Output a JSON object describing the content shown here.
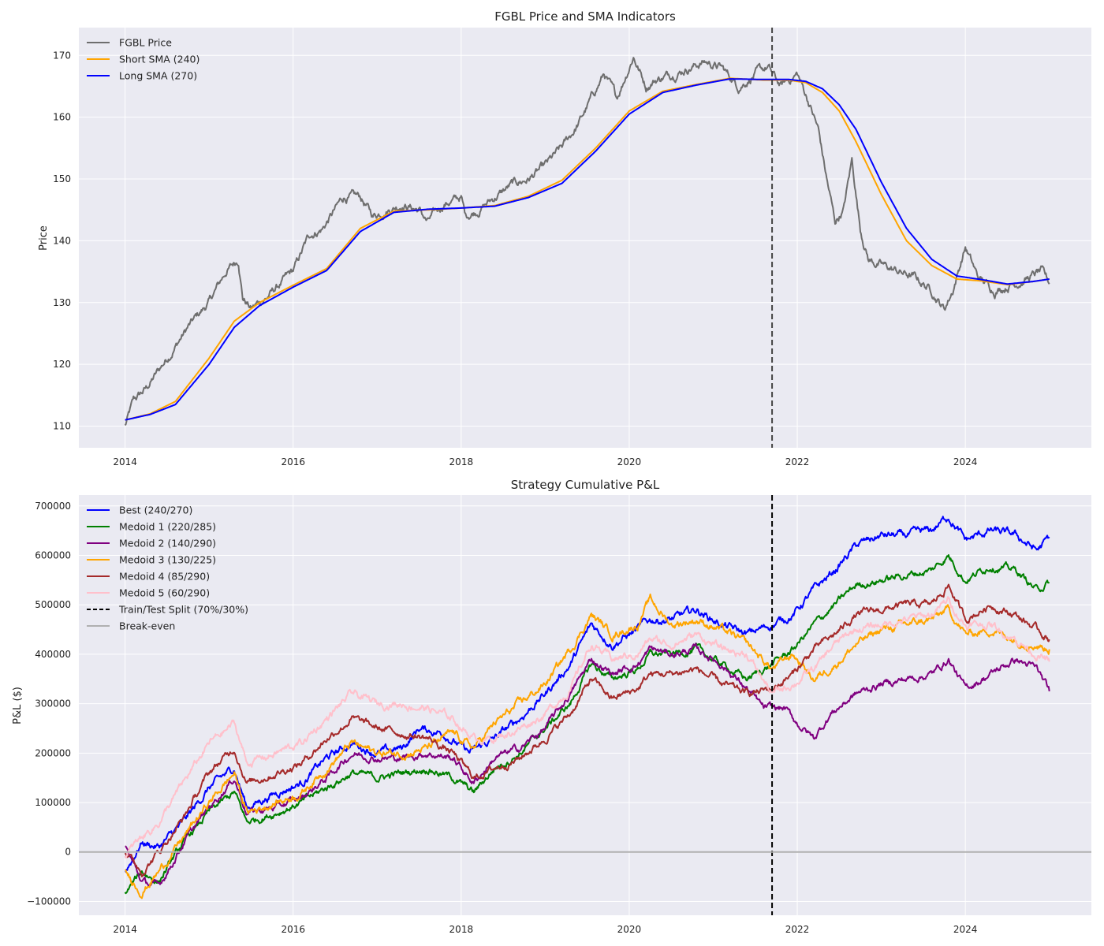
{
  "chart_data": [
    {
      "type": "line",
      "title": "FGBL Price and SMA Indicators",
      "xlabel": "",
      "ylabel": "Price",
      "xlim": [
        2013.45,
        2025.5
      ],
      "ylim": [
        106.5,
        174.5
      ],
      "xticks": [
        2014,
        2016,
        2018,
        2020,
        2022,
        2024
      ],
      "xtick_labels": [
        "2014",
        "2016",
        "2018",
        "2020",
        "2022",
        "2024"
      ],
      "yticks": [
        110,
        120,
        130,
        140,
        150,
        160,
        170
      ],
      "ytick_labels": [
        "110",
        "120",
        "130",
        "140",
        "150",
        "160",
        "170"
      ],
      "grid": true,
      "legend_position": "top-left",
      "split_line": {
        "x": 2021.7,
        "color": "#444444",
        "style": "dashed"
      },
      "series": [
        {
          "name": "FGBL Price",
          "color": "#6e6e6e",
          "noise": 0.9,
          "x": [
            2014.0,
            2014.1,
            2014.25,
            2014.5,
            2014.75,
            2015.0,
            2015.2,
            2015.35,
            2015.4,
            2015.5,
            2015.7,
            2016.0,
            2016.2,
            2016.35,
            2016.5,
            2016.6,
            2016.8,
            2016.95,
            2017.1,
            2017.3,
            2017.5,
            2017.6,
            2017.8,
            2018.0,
            2018.05,
            2018.2,
            2018.4,
            2018.6,
            2018.8,
            2019.0,
            2019.2,
            2019.4,
            2019.55,
            2019.7,
            2019.85,
            2020.05,
            2020.2,
            2020.3,
            2020.5,
            2020.7,
            2020.9,
            2021.1,
            2021.3,
            2021.5,
            2021.65,
            2021.8,
            2022.0,
            2022.15,
            2022.25,
            2022.35,
            2022.45,
            2022.55,
            2022.65,
            2022.75,
            2022.85,
            2023.0,
            2023.2,
            2023.4,
            2023.6,
            2023.75,
            2023.85,
            2024.0,
            2024.15,
            2024.35,
            2024.55,
            2024.75,
            2024.9,
            2025.0
          ],
          "y": [
            110,
            114,
            116,
            121,
            126,
            130,
            135,
            137,
            131,
            129,
            131,
            135,
            141,
            142,
            145,
            147,
            147,
            144,
            145,
            146,
            145,
            143,
            146,
            147,
            144,
            145,
            147,
            149,
            150,
            152,
            155,
            159,
            163,
            167,
            163,
            170,
            165,
            166,
            167,
            168,
            169,
            168,
            165,
            167,
            168,
            165,
            167,
            162,
            158,
            150,
            143,
            145,
            153,
            142,
            137,
            136,
            135,
            134,
            132,
            129,
            132,
            139,
            134,
            132,
            133,
            134,
            135,
            133
          ]
        },
        {
          "name": "Short SMA (240)",
          "color": "#ffa500",
          "noise": 0,
          "x": [
            2014.0,
            2014.3,
            2014.6,
            2015.0,
            2015.3,
            2015.6,
            2016.0,
            2016.4,
            2016.8,
            2017.2,
            2017.6,
            2018.0,
            2018.4,
            2018.8,
            2019.2,
            2019.6,
            2020.0,
            2020.4,
            2020.8,
            2021.2,
            2021.6,
            2021.9,
            2022.1,
            2022.3,
            2022.5,
            2022.7,
            2023.0,
            2023.3,
            2023.6,
            2023.9,
            2024.2,
            2024.5,
            2024.8,
            2025.0
          ],
          "y": [
            111,
            112,
            114,
            121,
            127,
            130,
            132.8,
            135.5,
            142,
            144.8,
            145,
            145.3,
            145.7,
            147.2,
            149.8,
            155,
            161,
            164.2,
            165.3,
            166.3,
            166,
            166,
            165.6,
            164,
            161,
            156,
            147.5,
            140,
            136,
            133.8,
            133.5,
            132.9,
            133.4,
            133.8
          ]
        },
        {
          "name": "Long SMA (270)",
          "color": "#0000ff",
          "noise": 0,
          "x": [
            2014.0,
            2014.3,
            2014.6,
            2015.0,
            2015.3,
            2015.6,
            2016.0,
            2016.4,
            2016.8,
            2017.2,
            2017.6,
            2018.0,
            2018.4,
            2018.8,
            2019.2,
            2019.6,
            2020.0,
            2020.4,
            2020.8,
            2021.2,
            2021.6,
            2021.9,
            2022.1,
            2022.3,
            2022.5,
            2022.7,
            2023.0,
            2023.3,
            2023.6,
            2023.9,
            2024.2,
            2024.5,
            2024.8,
            2025.0
          ],
          "y": [
            111,
            111.9,
            113.5,
            120,
            126,
            129.5,
            132.5,
            135.2,
            141.5,
            144.6,
            145.1,
            145.3,
            145.6,
            147,
            149.3,
            154.5,
            160.5,
            164,
            165.2,
            166.2,
            166.1,
            166.1,
            165.8,
            164.6,
            162,
            158,
            149.5,
            142,
            137,
            134.3,
            133.7,
            133,
            133.4,
            133.8
          ]
        }
      ]
    },
    {
      "type": "line",
      "title": "Strategy Cumulative P&L",
      "xlabel": "",
      "ylabel": "P&L ($)",
      "xlim": [
        2013.45,
        2025.5
      ],
      "ylim": [
        -128000,
        722000
      ],
      "xticks": [
        2014,
        2016,
        2018,
        2020,
        2022,
        2024
      ],
      "xtick_labels": [
        "2014",
        "2016",
        "2018",
        "2020",
        "2022",
        "2024"
      ],
      "yticks": [
        -100000,
        0,
        100000,
        200000,
        300000,
        400000,
        500000,
        600000,
        700000
      ],
      "ytick_labels": [
        "−100000",
        "0",
        "100000",
        "200000",
        "300000",
        "400000",
        "500000",
        "600000",
        "700000"
      ],
      "grid": true,
      "legend_position": "top-left",
      "series": [
        {
          "name": "Best (240/270)",
          "color": "#0000ff",
          "noise": 10000,
          "x": [
            2014.0,
            2014.2,
            2014.4,
            2014.7,
            2015.0,
            2015.3,
            2015.45,
            2015.8,
            2016.1,
            2016.4,
            2016.7,
            2017.0,
            2017.3,
            2017.5,
            2017.8,
            2018.1,
            2018.4,
            2018.7,
            2019.0,
            2019.3,
            2019.55,
            2019.8,
            2020.1,
            2020.25,
            2020.5,
            2020.8,
            2021.1,
            2021.4,
            2021.7,
            2021.95,
            2022.2,
            2022.45,
            2022.7,
            2023.0,
            2023.3,
            2023.6,
            2023.8,
            2024.0,
            2024.3,
            2024.6,
            2024.85,
            2025.0
          ],
          "y": [
            -40000,
            20000,
            10000,
            60000,
            130000,
            170000,
            90000,
            120000,
            140000,
            190000,
            220000,
            200000,
            210000,
            250000,
            240000,
            200000,
            230000,
            270000,
            320000,
            380000,
            460000,
            420000,
            450000,
            470000,
            470000,
            490000,
            460000,
            440000,
            460000,
            480000,
            530000,
            570000,
            620000,
            640000,
            640000,
            650000,
            680000,
            630000,
            650000,
            640000,
            610000,
            635000
          ]
        },
        {
          "name": "Medoid 1 (220/285)",
          "color": "#008000",
          "noise": 9000,
          "x": [
            2014.0,
            2014.2,
            2014.4,
            2014.7,
            2015.0,
            2015.3,
            2015.45,
            2015.8,
            2016.1,
            2016.4,
            2016.7,
            2017.0,
            2017.3,
            2017.6,
            2017.9,
            2018.15,
            2018.4,
            2018.7,
            2019.0,
            2019.3,
            2019.55,
            2019.8,
            2020.1,
            2020.25,
            2020.5,
            2020.8,
            2021.1,
            2021.4,
            2021.7,
            2021.95,
            2022.2,
            2022.45,
            2022.7,
            2023.0,
            2023.3,
            2023.6,
            2023.8,
            2024.0,
            2024.3,
            2024.6,
            2024.85,
            2025.0
          ],
          "y": [
            -85000,
            -40000,
            -60000,
            20000,
            80000,
            120000,
            60000,
            80000,
            100000,
            130000,
            160000,
            150000,
            160000,
            170000,
            150000,
            120000,
            170000,
            200000,
            250000,
            300000,
            380000,
            350000,
            370000,
            400000,
            400000,
            410000,
            380000,
            350000,
            380000,
            410000,
            460000,
            500000,
            540000,
            550000,
            560000,
            570000,
            600000,
            550000,
            580000,
            570000,
            530000,
            545000
          ]
        },
        {
          "name": "Medoid 2 (140/290)",
          "color": "#800080",
          "noise": 9000,
          "x": [
            2014.0,
            2014.2,
            2014.4,
            2014.7,
            2015.0,
            2015.3,
            2015.45,
            2015.8,
            2016.1,
            2016.4,
            2016.7,
            2017.0,
            2017.3,
            2017.6,
            2017.9,
            2018.15,
            2018.4,
            2018.7,
            2019.0,
            2019.3,
            2019.55,
            2019.8,
            2020.1,
            2020.25,
            2020.5,
            2020.8,
            2021.1,
            2021.4,
            2021.6,
            2021.85,
            2022.0,
            2022.2,
            2022.4,
            2022.7,
            2023.0,
            2023.3,
            2023.6,
            2023.8,
            2024.0,
            2024.3,
            2024.6,
            2024.85,
            2025.0
          ],
          "y": [
            10000,
            -60000,
            -70000,
            20000,
            90000,
            150000,
            80000,
            90000,
            110000,
            150000,
            200000,
            190000,
            190000,
            200000,
            190000,
            140000,
            190000,
            210000,
            250000,
            320000,
            390000,
            360000,
            380000,
            410000,
            400000,
            410000,
            380000,
            330000,
            290000,
            290000,
            260000,
            230000,
            280000,
            320000,
            340000,
            350000,
            360000,
            390000,
            330000,
            360000,
            390000,
            370000,
            325000
          ]
        },
        {
          "name": "Medoid 3 (130/225)",
          "color": "#ffa500",
          "noise": 10000,
          "x": [
            2014.0,
            2014.2,
            2014.4,
            2014.7,
            2015.0,
            2015.3,
            2015.45,
            2015.8,
            2016.1,
            2016.4,
            2016.7,
            2017.0,
            2017.3,
            2017.6,
            2017.9,
            2018.15,
            2018.4,
            2018.7,
            2019.0,
            2019.3,
            2019.55,
            2019.8,
            2020.1,
            2020.25,
            2020.5,
            2020.8,
            2021.1,
            2021.4,
            2021.7,
            2021.95,
            2022.2,
            2022.45,
            2022.7,
            2023.0,
            2023.3,
            2023.6,
            2023.8,
            2024.0,
            2024.3,
            2024.6,
            2024.85,
            2025.0
          ],
          "y": [
            -40000,
            -80000,
            -40000,
            30000,
            100000,
            160000,
            80000,
            100000,
            120000,
            170000,
            220000,
            200000,
            200000,
            210000,
            240000,
            210000,
            260000,
            300000,
            340000,
            410000,
            480000,
            440000,
            460000,
            510000,
            460000,
            470000,
            450000,
            420000,
            370000,
            400000,
            350000,
            380000,
            420000,
            450000,
            460000,
            470000,
            490000,
            440000,
            450000,
            430000,
            420000,
            410000
          ]
        },
        {
          "name": "Medoid 4 (85/290)",
          "color": "#a52a2a",
          "noise": 9000,
          "x": [
            2014.0,
            2014.2,
            2014.4,
            2014.7,
            2015.0,
            2015.3,
            2015.45,
            2015.8,
            2016.1,
            2016.4,
            2016.7,
            2017.0,
            2017.3,
            2017.6,
            2017.9,
            2018.15,
            2018.4,
            2018.7,
            2019.0,
            2019.3,
            2019.55,
            2019.8,
            2020.1,
            2020.25,
            2020.5,
            2020.8,
            2021.1,
            2021.4,
            2021.7,
            2021.95,
            2022.2,
            2022.45,
            2022.7,
            2023.0,
            2023.3,
            2023.6,
            2023.8,
            2024.0,
            2024.3,
            2024.6,
            2024.85,
            2025.0
          ],
          "y": [
            0,
            -40000,
            0,
            70000,
            160000,
            210000,
            140000,
            160000,
            180000,
            230000,
            270000,
            250000,
            240000,
            230000,
            200000,
            150000,
            170000,
            190000,
            230000,
            280000,
            350000,
            310000,
            330000,
            360000,
            360000,
            370000,
            340000,
            320000,
            330000,
            360000,
            410000,
            440000,
            480000,
            490000,
            500000,
            500000,
            540000,
            470000,
            500000,
            480000,
            450000,
            430000
          ]
        },
        {
          "name": "Medoid 5 (60/290)",
          "color": "#ffc0cb",
          "noise": 10000,
          "x": [
            2014.0,
            2014.2,
            2014.4,
            2014.7,
            2015.0,
            2015.3,
            2015.45,
            2015.8,
            2016.1,
            2016.4,
            2016.7,
            2017.0,
            2017.3,
            2017.6,
            2017.9,
            2018.15,
            2018.4,
            2018.7,
            2019.0,
            2019.3,
            2019.55,
            2019.8,
            2020.1,
            2020.25,
            2020.5,
            2020.8,
            2021.1,
            2021.4,
            2021.7,
            2021.95,
            2022.2,
            2022.45,
            2022.7,
            2023.0,
            2023.3,
            2023.6,
            2023.8,
            2024.0,
            2024.3,
            2024.6,
            2024.85,
            2025.0
          ],
          "y": [
            -10000,
            30000,
            60000,
            140000,
            220000,
            260000,
            180000,
            200000,
            220000,
            270000,
            320000,
            300000,
            300000,
            290000,
            270000,
            230000,
            230000,
            250000,
            280000,
            330000,
            420000,
            390000,
            400000,
            430000,
            420000,
            440000,
            410000,
            400000,
            320000,
            340000,
            370000,
            420000,
            450000,
            460000,
            470000,
            480000,
            510000,
            460000,
            460000,
            430000,
            400000,
            385000
          ]
        }
      ],
      "reference_lines": [
        {
          "name": "Train/Test Split (70%/30%)",
          "orientation": "vertical",
          "x": 2021.7,
          "color": "#000000",
          "style": "dashed"
        },
        {
          "name": "Break-even",
          "orientation": "horizontal",
          "y": 0,
          "color": "#b0b0b0",
          "style": "solid"
        }
      ]
    }
  ]
}
